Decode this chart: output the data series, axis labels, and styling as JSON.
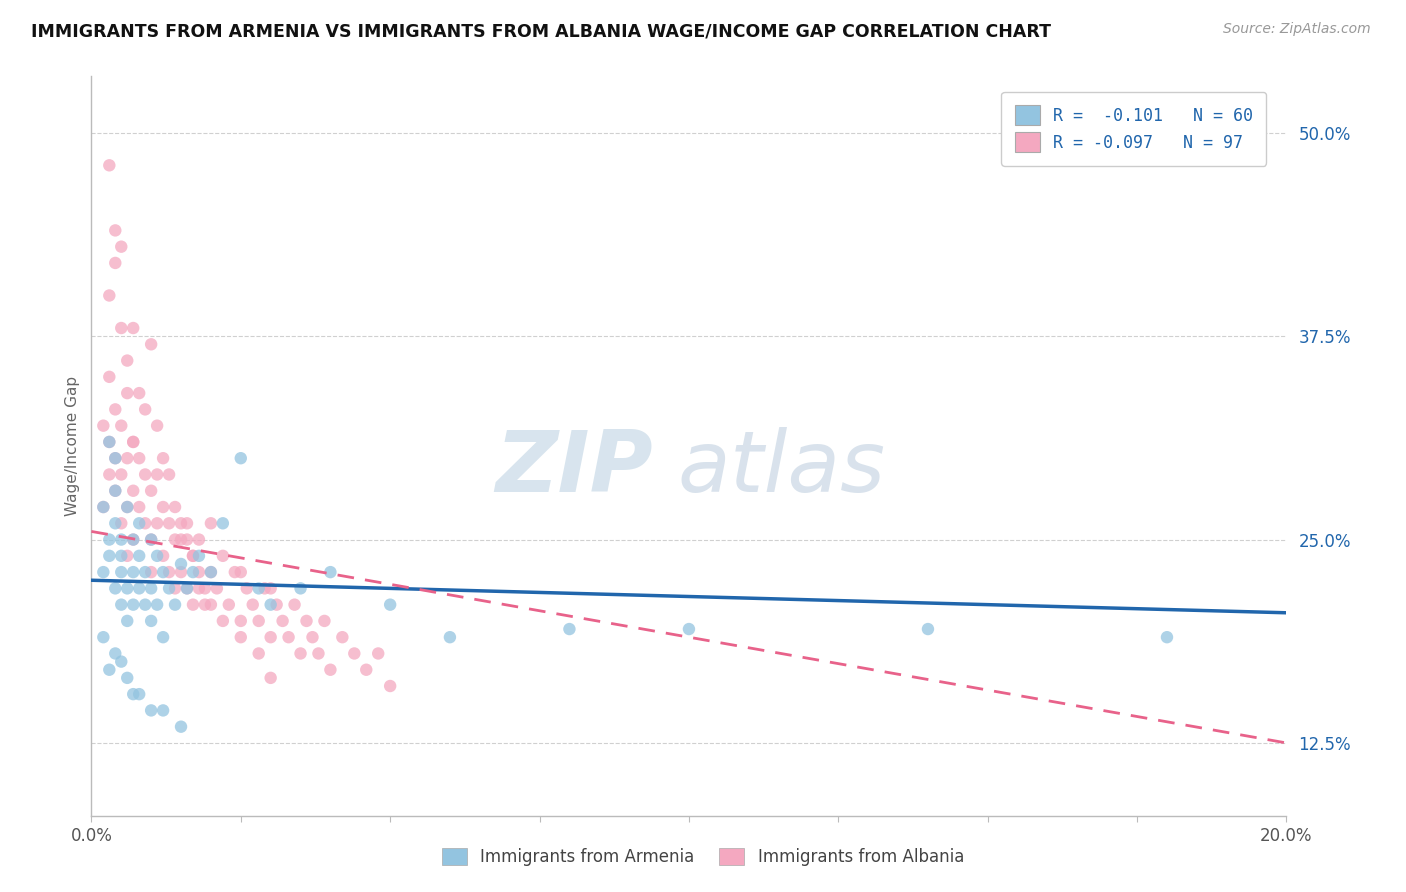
{
  "title": "IMMIGRANTS FROM ARMENIA VS IMMIGRANTS FROM ALBANIA WAGE/INCOME GAP CORRELATION CHART",
  "source_text": "Source: ZipAtlas.com",
  "ylabel": "Wage/Income Gap",
  "xlim": [
    0.0,
    0.2
  ],
  "ylim": [
    0.08,
    0.535
  ],
  "yticks_right": [
    0.125,
    0.25,
    0.375,
    0.5
  ],
  "ytick_right_labels": [
    "12.5%",
    "25.0%",
    "37.5%",
    "50.0%"
  ],
  "armenia_color": "#93c4e0",
  "albania_color": "#f4a8c0",
  "armenia_line_color": "#2166ac",
  "albania_line_color": "#e8628a",
  "legend_label_1": "R =  -0.101   N = 60",
  "legend_label_2": "R = -0.097   N = 97",
  "bottom_legend_1": "Immigrants from Armenia",
  "bottom_legend_2": "Immigrants from Albania",
  "watermark_zip": "ZIP",
  "watermark_atlas": "atlas",
  "background_color": "#ffffff",
  "grid_color": "#d0d0d0",
  "armenia_line_x0": 0.0,
  "armenia_line_y0": 0.225,
  "armenia_line_x1": 0.2,
  "armenia_line_y1": 0.205,
  "albania_line_x0": 0.0,
  "albania_line_y0": 0.255,
  "albania_line_x1": 0.2,
  "albania_line_y1": 0.125,
  "armenia_x": [
    0.002,
    0.002,
    0.003,
    0.003,
    0.003,
    0.004,
    0.004,
    0.004,
    0.004,
    0.005,
    0.005,
    0.005,
    0.005,
    0.006,
    0.006,
    0.006,
    0.007,
    0.007,
    0.007,
    0.008,
    0.008,
    0.008,
    0.009,
    0.009,
    0.01,
    0.01,
    0.01,
    0.011,
    0.011,
    0.012,
    0.012,
    0.013,
    0.014,
    0.015,
    0.016,
    0.017,
    0.018,
    0.02,
    0.022,
    0.025,
    0.028,
    0.03,
    0.035,
    0.04,
    0.05,
    0.06,
    0.08,
    0.1,
    0.14,
    0.18,
    0.002,
    0.003,
    0.004,
    0.005,
    0.006,
    0.007,
    0.008,
    0.01,
    0.012,
    0.015
  ],
  "armenia_y": [
    0.23,
    0.27,
    0.24,
    0.25,
    0.31,
    0.26,
    0.28,
    0.22,
    0.3,
    0.24,
    0.25,
    0.21,
    0.23,
    0.27,
    0.22,
    0.2,
    0.25,
    0.23,
    0.21,
    0.26,
    0.24,
    0.22,
    0.23,
    0.21,
    0.25,
    0.22,
    0.2,
    0.24,
    0.21,
    0.23,
    0.19,
    0.22,
    0.21,
    0.235,
    0.22,
    0.23,
    0.24,
    0.23,
    0.26,
    0.3,
    0.22,
    0.21,
    0.22,
    0.23,
    0.21,
    0.19,
    0.195,
    0.195,
    0.195,
    0.19,
    0.19,
    0.17,
    0.18,
    0.175,
    0.165,
    0.155,
    0.155,
    0.145,
    0.145,
    0.135
  ],
  "albania_x": [
    0.002,
    0.002,
    0.003,
    0.003,
    0.003,
    0.004,
    0.004,
    0.004,
    0.005,
    0.005,
    0.005,
    0.006,
    0.006,
    0.006,
    0.007,
    0.007,
    0.007,
    0.008,
    0.008,
    0.009,
    0.009,
    0.01,
    0.01,
    0.01,
    0.011,
    0.011,
    0.012,
    0.012,
    0.013,
    0.013,
    0.014,
    0.014,
    0.015,
    0.015,
    0.016,
    0.016,
    0.017,
    0.017,
    0.018,
    0.018,
    0.019,
    0.02,
    0.02,
    0.021,
    0.022,
    0.023,
    0.024,
    0.025,
    0.025,
    0.026,
    0.027,
    0.028,
    0.029,
    0.03,
    0.03,
    0.031,
    0.032,
    0.033,
    0.034,
    0.035,
    0.036,
    0.037,
    0.038,
    0.039,
    0.04,
    0.042,
    0.044,
    0.046,
    0.048,
    0.05,
    0.003,
    0.004,
    0.005,
    0.006,
    0.007,
    0.008,
    0.009,
    0.01,
    0.011,
    0.012,
    0.013,
    0.014,
    0.015,
    0.016,
    0.017,
    0.018,
    0.019,
    0.02,
    0.022,
    0.025,
    0.028,
    0.03,
    0.003,
    0.004,
    0.005,
    0.006,
    0.007
  ],
  "albania_y": [
    0.27,
    0.32,
    0.29,
    0.31,
    0.35,
    0.28,
    0.3,
    0.33,
    0.26,
    0.29,
    0.32,
    0.27,
    0.3,
    0.24,
    0.28,
    0.31,
    0.25,
    0.27,
    0.3,
    0.26,
    0.29,
    0.25,
    0.28,
    0.23,
    0.26,
    0.29,
    0.24,
    0.27,
    0.23,
    0.26,
    0.22,
    0.25,
    0.23,
    0.26,
    0.22,
    0.25,
    0.21,
    0.24,
    0.22,
    0.25,
    0.21,
    0.23,
    0.26,
    0.22,
    0.24,
    0.21,
    0.23,
    0.2,
    0.23,
    0.22,
    0.21,
    0.2,
    0.22,
    0.19,
    0.22,
    0.21,
    0.2,
    0.19,
    0.21,
    0.18,
    0.2,
    0.19,
    0.18,
    0.2,
    0.17,
    0.19,
    0.18,
    0.17,
    0.18,
    0.16,
    0.4,
    0.44,
    0.43,
    0.36,
    0.38,
    0.34,
    0.33,
    0.37,
    0.32,
    0.3,
    0.29,
    0.27,
    0.25,
    0.26,
    0.24,
    0.23,
    0.22,
    0.21,
    0.2,
    0.19,
    0.18,
    0.165,
    0.48,
    0.42,
    0.38,
    0.34,
    0.31
  ]
}
